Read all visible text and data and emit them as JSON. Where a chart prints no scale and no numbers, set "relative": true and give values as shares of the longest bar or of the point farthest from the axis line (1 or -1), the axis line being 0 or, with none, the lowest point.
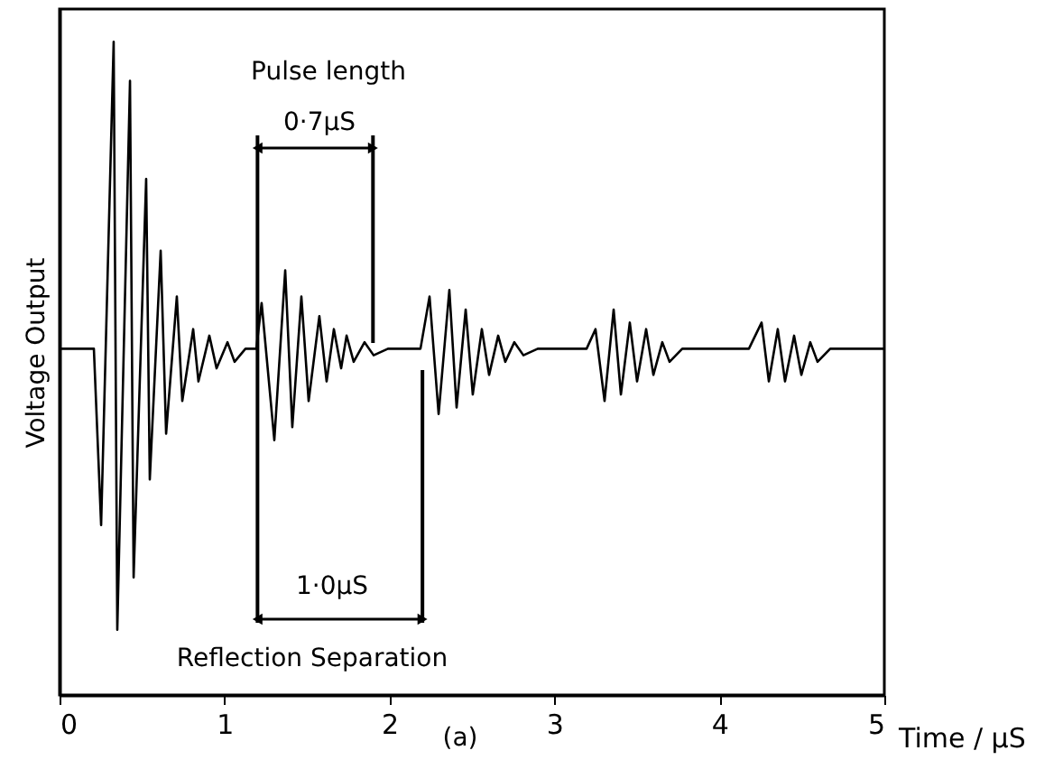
{
  "chart_data": {
    "type": "line",
    "relative": true,
    "xlabel": "Time / µS",
    "ylabel": "Voltage Output",
    "xlim": [
      0,
      5
    ],
    "xticks": [
      0,
      1,
      2,
      3,
      4,
      5
    ],
    "tick_labels": "x",
    "grid": false,
    "marker": "none",
    "line_style": "solid",
    "x": [
      0,
      0.208,
      0.252,
      0.328,
      0.35,
      0.427,
      0.449,
      0.525,
      0.547,
      0.613,
      0.646,
      0.711,
      0.744,
      0.81,
      0.842,
      0.908,
      0.952,
      1.018,
      1.061,
      1.127,
      1.193,
      1.225,
      1.302,
      1.368,
      1.411,
      1.466,
      1.51,
      1.575,
      1.619,
      1.663,
      1.707,
      1.74,
      1.783,
      1.849,
      1.904,
      1.991,
      2.188,
      2.243,
      2.298,
      2.363,
      2.407,
      2.462,
      2.505,
      2.56,
      2.604,
      2.659,
      2.702,
      2.757,
      2.812,
      2.899,
      3.195,
      3.249,
      3.304,
      3.359,
      3.403,
      3.457,
      3.501,
      3.556,
      3.6,
      3.654,
      3.698,
      3.775,
      4.179,
      4.256,
      4.3,
      4.354,
      4.398,
      4.453,
      4.497,
      4.551,
      4.595,
      4.672,
      5
    ],
    "series": [
      {
        "color": "#000000",
        "values": [
          0.53,
          0.53,
          0.26,
          1.0,
          0.1,
          0.94,
          0.18,
          0.79,
          0.33,
          0.68,
          0.4,
          0.61,
          0.45,
          0.56,
          0.48,
          0.55,
          0.5,
          0.54,
          0.51,
          0.53,
          0.53,
          0.6,
          0.39,
          0.65,
          0.41,
          0.61,
          0.45,
          0.58,
          0.48,
          0.56,
          0.5,
          0.55,
          0.51,
          0.54,
          0.52,
          0.53,
          0.53,
          0.61,
          0.43,
          0.62,
          0.44,
          0.59,
          0.46,
          0.56,
          0.49,
          0.55,
          0.51,
          0.54,
          0.52,
          0.53,
          0.53,
          0.56,
          0.45,
          0.59,
          0.46,
          0.57,
          0.48,
          0.56,
          0.49,
          0.54,
          0.51,
          0.53,
          0.53,
          0.57,
          0.48,
          0.56,
          0.48,
          0.55,
          0.49,
          0.54,
          0.51,
          0.53,
          0.53
        ]
      }
    ],
    "ref_lines": [
      {
        "axis": "x",
        "value": 1.2
      },
      {
        "axis": "x",
        "value": 1.9
      },
      {
        "axis": "x",
        "value": 2.2
      }
    ],
    "annotations": [
      "Pulse length",
      "0·7µS",
      "1·0µS",
      "Reflection Separation",
      "(a)"
    ]
  }
}
